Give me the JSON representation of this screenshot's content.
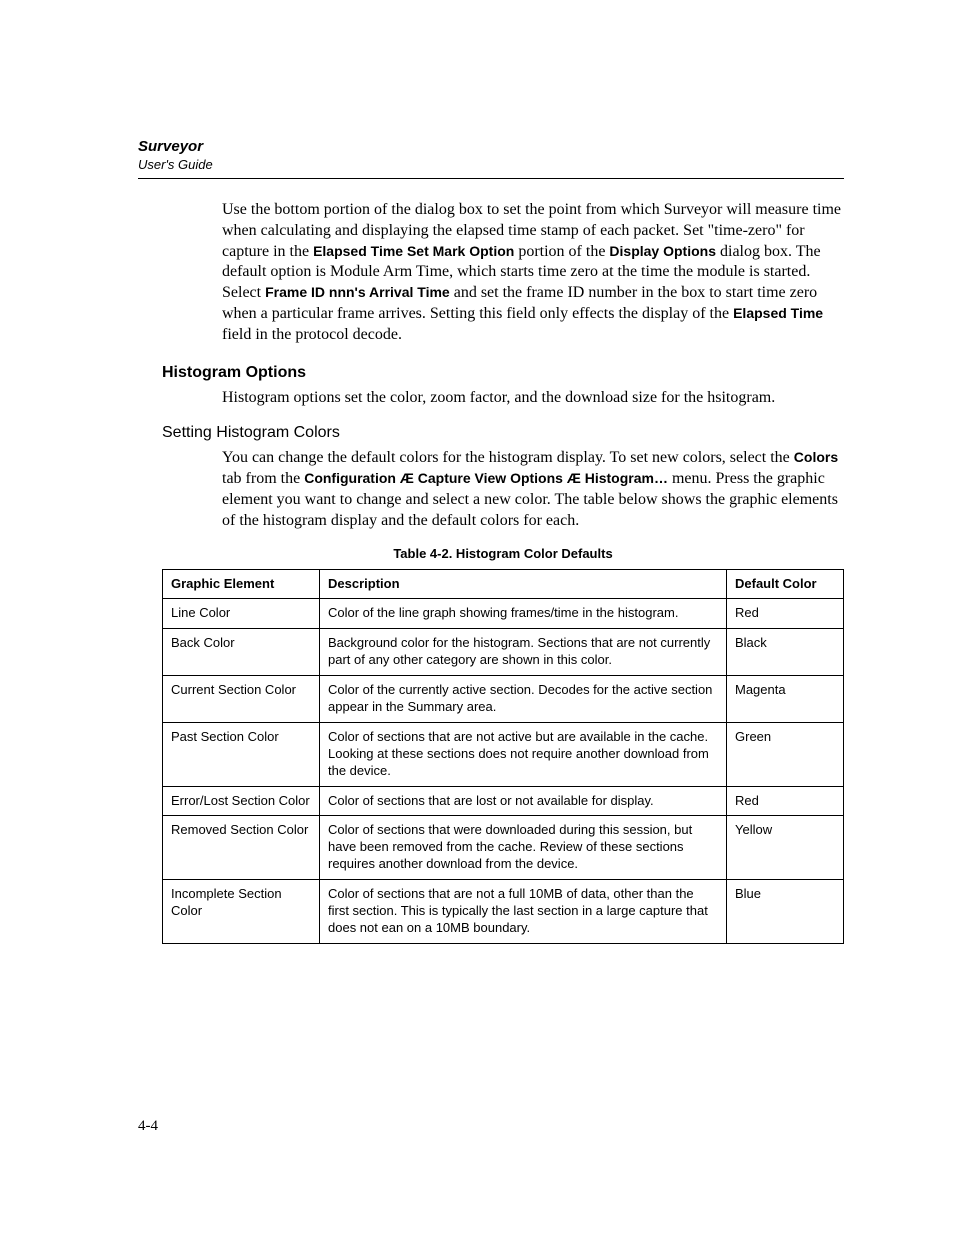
{
  "header": {
    "title": "Surveyor",
    "subtitle": "User's Guide"
  },
  "para1": {
    "t1": "Use the bottom portion of the dialog box to set the point from which Surveyor will measure time when calculating and displaying the elapsed time stamp of each packet. Set \"time-zero\" for capture in the ",
    "b1": "Elapsed Time Set Mark Option",
    "t2": " portion of the ",
    "b2": "Display Options",
    "t3": " dialog box. The default option is Module Arm Time, which starts time zero at the time the module is started. Select ",
    "b3": "Frame ID nnn's Arrival Time",
    "t4": " and set the frame ID number in the box to start time zero when a particular frame arrives. Setting this field only effects the display of the ",
    "b4": "Elapsed Time",
    "t5": " field in the protocol decode."
  },
  "heading_major": "Histogram Options",
  "para2": "Histogram options set the color, zoom factor, and the download size for the hsitogram.",
  "heading_minor": "Setting Histogram Colors",
  "para3": {
    "t1": "You can change the default colors for the histogram display.  To set new colors, select the ",
    "b1": "Colors",
    "t2": " tab from the ",
    "b2": "Configuration Æ Capture View Options Æ Histogram…",
    "t3": " menu. Press the graphic element you want to change and select a new color. The table below shows the graphic elements of the histogram display and the default colors for each."
  },
  "table": {
    "caption": "Table 4-2. Histogram Color Defaults",
    "columns": [
      "Graphic Element",
      "Description",
      "Default Color"
    ],
    "rows": [
      [
        "Line Color",
        "Color of the line graph showing frames/time in the histogram.",
        "Red"
      ],
      [
        "Back Color",
        "Background color for the histogram. Sections that are not currently part of any other category are shown in this color.",
        "Black"
      ],
      [
        "Current Section Color",
        "Color of the currently active section. Decodes for the active section appear in the Summary area.",
        "Magenta"
      ],
      [
        "Past Section Color",
        "Color of sections that are not active but are available in the cache. Looking at these sections does not require another download from the device.",
        "Green"
      ],
      [
        "Error/Lost Section Color",
        "Color of sections that are lost or not available for display.",
        "Red"
      ],
      [
        "Removed Section Color",
        "Color of sections that were downloaded during this session, but have been removed from the cache. Review of these sections requires another download from the device.",
        "Yellow"
      ],
      [
        "Incomplete Section Color",
        "Color of sections that are not a full 10MB of data, other than the first section. This is typically the last section in a large capture that does not ean on a 10MB boundary.",
        "Blue"
      ]
    ]
  },
  "page_number": "4-4"
}
